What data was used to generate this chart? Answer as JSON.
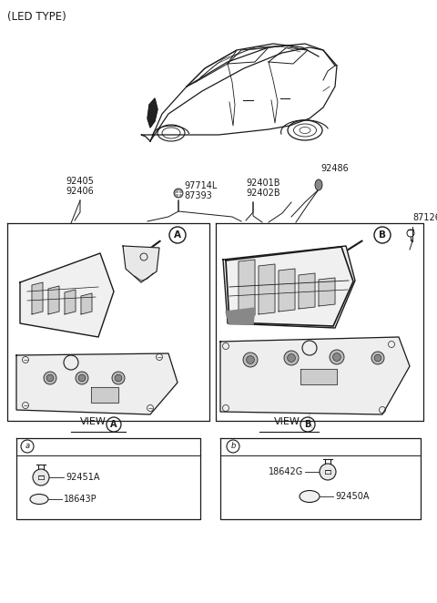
{
  "title": "(LED TYPE)",
  "background_color": "#ffffff",
  "fig_width": 4.8,
  "fig_height": 6.62,
  "dpi": 100,
  "labels": {
    "led_type": "(LED TYPE)",
    "part_92405": "92405",
    "part_92406": "92406",
    "part_97714L": "97714L",
    "part_87393": "87393",
    "part_92401B": "92401B",
    "part_92402B": "92402B",
    "part_92486": "92486",
    "part_87126": "87126",
    "view_A": "VIEW",
    "view_B": "VIEW",
    "part_92451A": "92451A",
    "part_18643P": "18643P",
    "part_18642G": "18642G",
    "part_92450A": "92450A"
  },
  "text_color": "#1a1a1a",
  "line_color": "#1a1a1a",
  "box_color": "#1a1a1a"
}
